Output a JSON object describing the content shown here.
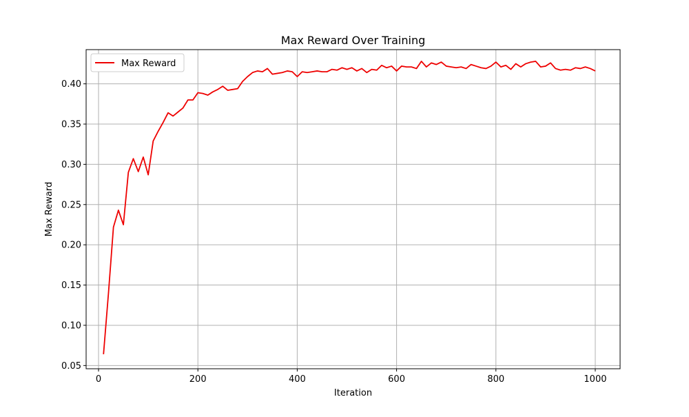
{
  "chart_data": {
    "type": "line",
    "title": "Max Reward Over Training",
    "xlabel": "Iteration",
    "ylabel": "Max Reward",
    "xlim": [
      -25,
      1050
    ],
    "ylim": [
      0.046,
      0.4425
    ],
    "grid": true,
    "legend_placement": "top-left",
    "x_ticks": [
      0,
      200,
      400,
      600,
      800,
      1000
    ],
    "x_tick_labels": [
      "0",
      "200",
      "400",
      "600",
      "800",
      "1000"
    ],
    "y_ticks": [
      0.05,
      0.1,
      0.15,
      0.2,
      0.25,
      0.3,
      0.35,
      0.4
    ],
    "y_tick_labels": [
      "0.05",
      "0.10",
      "0.15",
      "0.20",
      "0.25",
      "0.30",
      "0.35",
      "0.40"
    ],
    "colors": {
      "line": "#ee0000",
      "grid": "#b0b0b0",
      "axes": "#000000"
    },
    "series": [
      {
        "name": "Max Reward",
        "x": [
          10,
          20,
          30,
          40,
          50,
          60,
          70,
          80,
          90,
          100,
          110,
          120,
          130,
          140,
          150,
          160,
          170,
          180,
          190,
          200,
          210,
          220,
          230,
          240,
          250,
          260,
          270,
          280,
          290,
          300,
          310,
          320,
          330,
          340,
          350,
          360,
          370,
          380,
          390,
          400,
          410,
          420,
          430,
          440,
          450,
          460,
          470,
          480,
          490,
          500,
          510,
          520,
          530,
          540,
          550,
          560,
          570,
          580,
          590,
          600,
          610,
          620,
          630,
          640,
          650,
          660,
          670,
          680,
          690,
          700,
          710,
          720,
          730,
          740,
          750,
          760,
          770,
          780,
          790,
          800,
          810,
          820,
          830,
          840,
          850,
          860,
          870,
          880,
          890,
          900,
          910,
          920,
          930,
          940,
          950,
          960,
          970,
          980,
          990,
          1000
        ],
        "values": [
          0.064,
          0.14,
          0.222,
          0.243,
          0.225,
          0.29,
          0.307,
          0.291,
          0.309,
          0.287,
          0.329,
          0.341,
          0.352,
          0.364,
          0.36,
          0.365,
          0.37,
          0.38,
          0.38,
          0.389,
          0.388,
          0.386,
          0.39,
          0.393,
          0.397,
          0.392,
          0.393,
          0.394,
          0.403,
          0.409,
          0.414,
          0.416,
          0.415,
          0.419,
          0.412,
          0.413,
          0.414,
          0.416,
          0.415,
          0.409,
          0.415,
          0.414,
          0.415,
          0.416,
          0.415,
          0.415,
          0.418,
          0.417,
          0.42,
          0.418,
          0.42,
          0.416,
          0.419,
          0.414,
          0.418,
          0.417,
          0.423,
          0.42,
          0.422,
          0.416,
          0.422,
          0.421,
          0.421,
          0.419,
          0.428,
          0.421,
          0.426,
          0.424,
          0.427,
          0.422,
          0.421,
          0.42,
          0.421,
          0.419,
          0.424,
          0.422,
          0.42,
          0.419,
          0.422,
          0.427,
          0.421,
          0.423,
          0.418,
          0.425,
          0.421,
          0.425,
          0.427,
          0.428,
          0.421,
          0.422,
          0.426,
          0.419,
          0.417,
          0.418,
          0.417,
          0.42,
          0.419,
          0.421,
          0.419,
          0.416
        ]
      }
    ]
  }
}
